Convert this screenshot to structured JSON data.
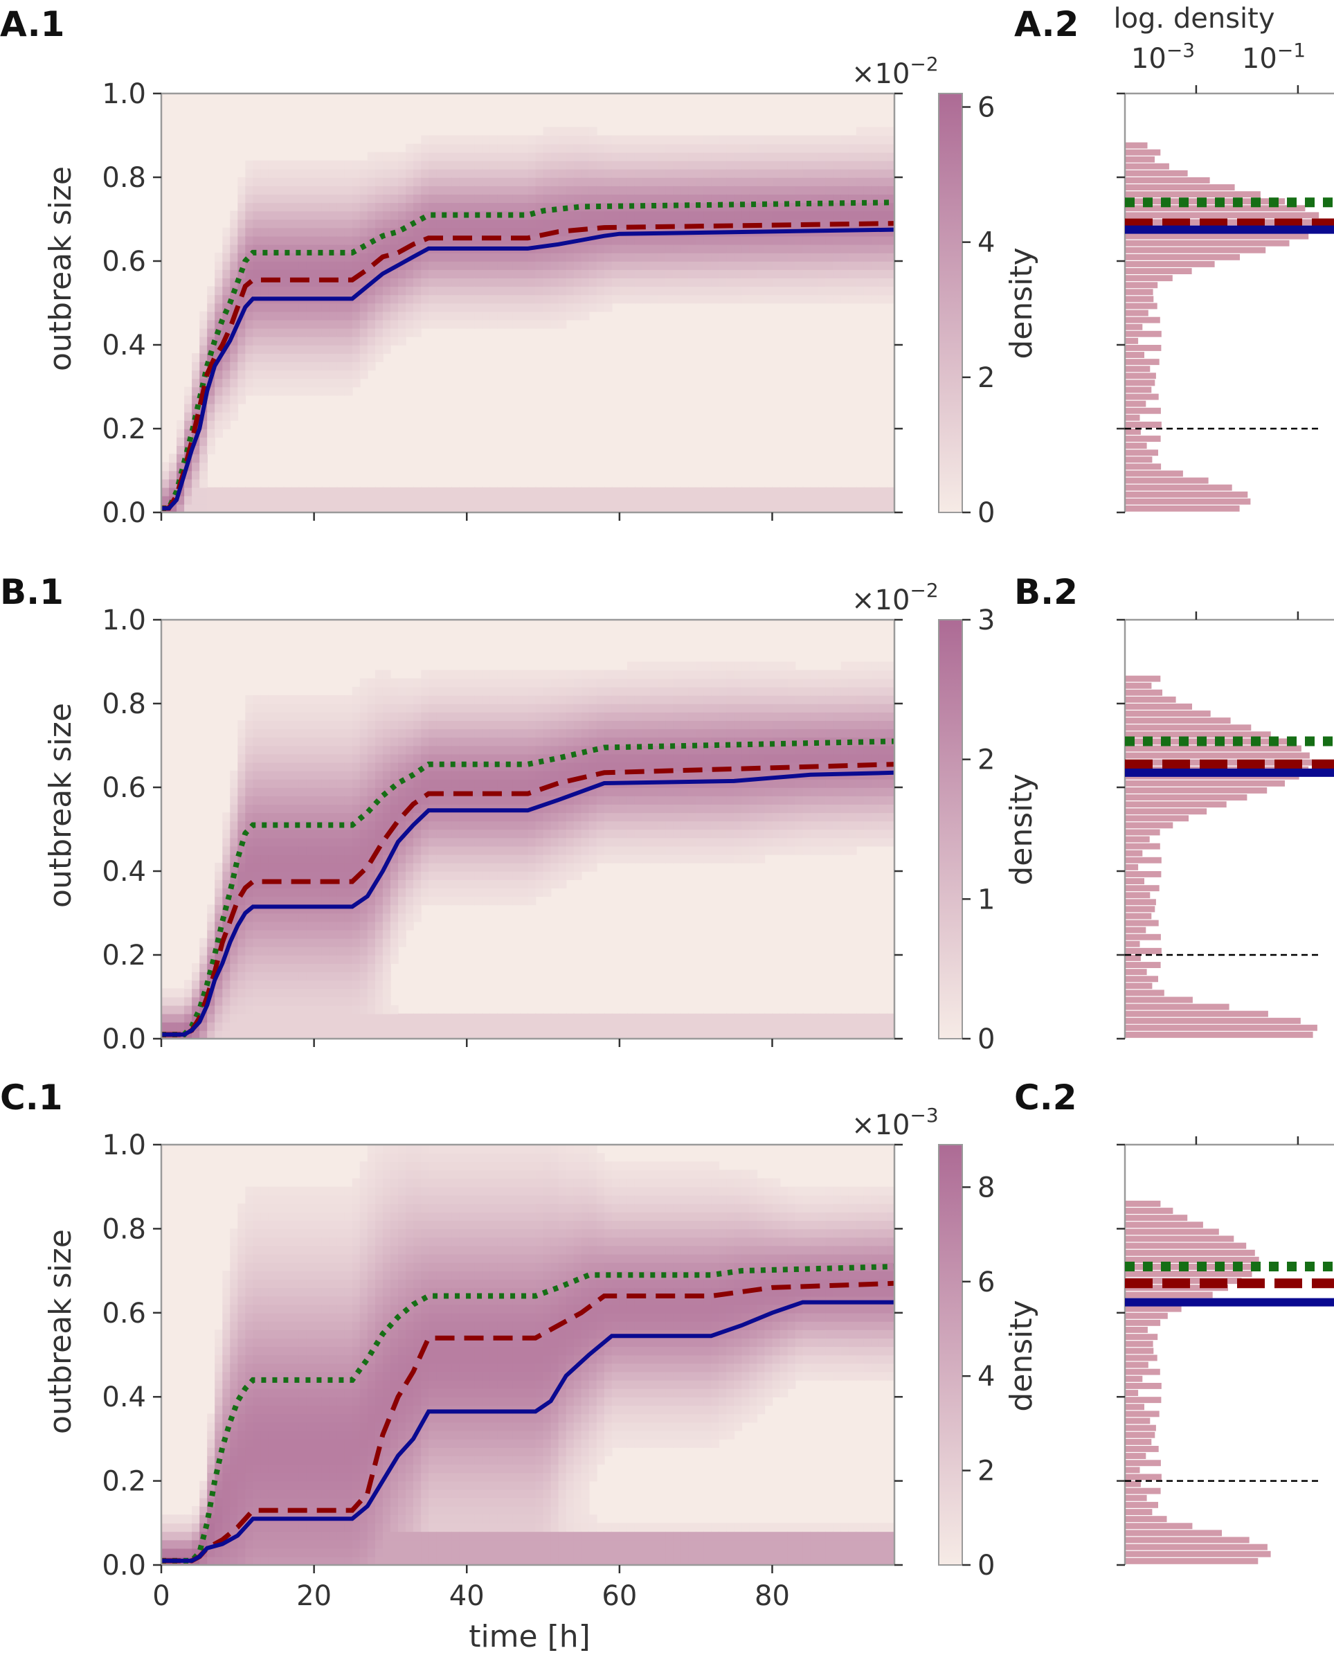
{
  "colors": {
    "heat_low": "#f6ebe6",
    "heat_high": "#ad6b95",
    "hist": "#d29aaa",
    "mean_dotted": "#156e15",
    "median_dashed": "#8b0000",
    "typical_solid": "#0a0a90",
    "spine": "#9a9a9a",
    "threshold_line": "#000000"
  },
  "shared": {
    "xlabel": "time [h]",
    "ylabel": "outbreak size",
    "cbar_label": "density",
    "density_axis_label": "log. density",
    "density_tick_labels": [
      {
        "base": "10",
        "exp": "−3"
      },
      {
        "base": "10",
        "exp": "−1"
      }
    ]
  },
  "chart_data": [
    {
      "type": "heatmap",
      "panel": "A",
      "label_main": "A.1",
      "label_side": "A.2",
      "xlim": [
        0,
        96
      ],
      "ylim": [
        0,
        1.0
      ],
      "x_ticks": [
        0,
        20,
        40,
        60,
        80
      ],
      "x_tick_labels": [
        "",
        "",
        "",
        "",
        ""
      ],
      "y_ticks": [
        0.0,
        0.2,
        0.4,
        0.6,
        0.8,
        1.0
      ],
      "y_tick_labels": [
        "0.0",
        "0.2",
        "0.4",
        "0.6",
        "0.8",
        "1.0"
      ],
      "colorbar": {
        "max": 6.2,
        "ticks": [
          0,
          2,
          4,
          6
        ],
        "tick_labels": [
          "0",
          "2",
          "4",
          "6"
        ],
        "multiplier_base": "×10",
        "multiplier_exp": "−2"
      },
      "show_density_ticklabels": true,
      "threshold": 0.2,
      "series": [
        {
          "name": "dotted",
          "style": "dotted",
          "points": [
            [
              0,
              0.01
            ],
            [
              1,
              0.01
            ],
            [
              2,
              0.05
            ],
            [
              3,
              0.12
            ],
            [
              4,
              0.19
            ],
            [
              5,
              0.27
            ],
            [
              6,
              0.35
            ],
            [
              7,
              0.41
            ],
            [
              8,
              0.46
            ],
            [
              9,
              0.5
            ],
            [
              10,
              0.55
            ],
            [
              11,
              0.6
            ],
            [
              12,
              0.62
            ],
            [
              25,
              0.62
            ],
            [
              27,
              0.64
            ],
            [
              29,
              0.66
            ],
            [
              31,
              0.67
            ],
            [
              33,
              0.69
            ],
            [
              35,
              0.71
            ],
            [
              48,
              0.71
            ],
            [
              50,
              0.72
            ],
            [
              55,
              0.73
            ],
            [
              96,
              0.74
            ]
          ]
        },
        {
          "name": "dashed",
          "style": "dashed",
          "points": [
            [
              0,
              0.01
            ],
            [
              1,
              0.01
            ],
            [
              2,
              0.04
            ],
            [
              3,
              0.1
            ],
            [
              4,
              0.17
            ],
            [
              5,
              0.25
            ],
            [
              6,
              0.33
            ],
            [
              7,
              0.37
            ],
            [
              8,
              0.4
            ],
            [
              9,
              0.44
            ],
            [
              10,
              0.49
            ],
            [
              11,
              0.54
            ],
            [
              12,
              0.555
            ],
            [
              25,
              0.555
            ],
            [
              27,
              0.58
            ],
            [
              29,
              0.61
            ],
            [
              31,
              0.62
            ],
            [
              33,
              0.64
            ],
            [
              35,
              0.655
            ],
            [
              48,
              0.655
            ],
            [
              52,
              0.67
            ],
            [
              58,
              0.68
            ],
            [
              96,
              0.69
            ]
          ]
        },
        {
          "name": "solid",
          "style": "solid",
          "points": [
            [
              0,
              0.01
            ],
            [
              1,
              0.01
            ],
            [
              2,
              0.03
            ],
            [
              3,
              0.09
            ],
            [
              4,
              0.15
            ],
            [
              5,
              0.2
            ],
            [
              6,
              0.29
            ],
            [
              7,
              0.35
            ],
            [
              8,
              0.38
            ],
            [
              9,
              0.41
            ],
            [
              10,
              0.45
            ],
            [
              11,
              0.49
            ],
            [
              12,
              0.51
            ],
            [
              25,
              0.51
            ],
            [
              27,
              0.54
            ],
            [
              29,
              0.57
            ],
            [
              31,
              0.59
            ],
            [
              33,
              0.61
            ],
            [
              35,
              0.63
            ],
            [
              48,
              0.63
            ],
            [
              52,
              0.64
            ],
            [
              55,
              0.65
            ],
            [
              58,
              0.66
            ],
            [
              60,
              0.665
            ],
            [
              96,
              0.675
            ]
          ]
        }
      ],
      "band": {
        "center": 0.68,
        "width": 0.1,
        "baseline": 0.02,
        "floor": 0.05
      },
      "hist_profile": {
        "low_peak": 0.03,
        "low_frac": 0.62,
        "high_peak": 0.69,
        "high_spread": 0.11,
        "high_frac": 0.98,
        "top": 0.89
      }
    },
    {
      "type": "heatmap",
      "panel": "B",
      "label_main": "B.1",
      "label_side": "B.2",
      "xlim": [
        0,
        96
      ],
      "ylim": [
        0,
        1.0
      ],
      "x_ticks": [
        0,
        20,
        40,
        60,
        80
      ],
      "x_tick_labels": [
        "",
        "",
        "",
        "",
        ""
      ],
      "y_ticks": [
        0.0,
        0.2,
        0.4,
        0.6,
        0.8,
        1.0
      ],
      "y_tick_labels": [
        "0.0",
        "0.2",
        "0.4",
        "0.6",
        "0.8",
        "1.0"
      ],
      "colorbar": {
        "max": 3.0,
        "ticks": [
          0,
          1,
          2,
          3
        ],
        "tick_labels": [
          "0",
          "1",
          "2",
          "3"
        ],
        "multiplier_base": "×10",
        "multiplier_exp": "−2"
      },
      "show_density_ticklabels": false,
      "threshold": 0.2,
      "series": [
        {
          "name": "dotted",
          "style": "dotted",
          "points": [
            [
              0,
              0.01
            ],
            [
              3,
              0.01
            ],
            [
              4,
              0.03
            ],
            [
              5,
              0.07
            ],
            [
              6,
              0.13
            ],
            [
              7,
              0.2
            ],
            [
              8,
              0.28
            ],
            [
              9,
              0.35
            ],
            [
              10,
              0.43
            ],
            [
              11,
              0.49
            ],
            [
              12,
              0.51
            ],
            [
              25,
              0.51
            ],
            [
              27,
              0.54
            ],
            [
              29,
              0.58
            ],
            [
              31,
              0.61
            ],
            [
              33,
              0.63
            ],
            [
              35,
              0.655
            ],
            [
              48,
              0.655
            ],
            [
              52,
              0.67
            ],
            [
              58,
              0.695
            ],
            [
              96,
              0.71
            ]
          ]
        },
        {
          "name": "dashed",
          "style": "dashed",
          "points": [
            [
              0,
              0.01
            ],
            [
              3,
              0.01
            ],
            [
              4,
              0.02
            ],
            [
              5,
              0.05
            ],
            [
              6,
              0.1
            ],
            [
              7,
              0.16
            ],
            [
              8,
              0.23
            ],
            [
              9,
              0.28
            ],
            [
              10,
              0.33
            ],
            [
              11,
              0.36
            ],
            [
              12,
              0.375
            ],
            [
              25,
              0.375
            ],
            [
              27,
              0.41
            ],
            [
              29,
              0.47
            ],
            [
              31,
              0.52
            ],
            [
              33,
              0.56
            ],
            [
              35,
              0.585
            ],
            [
              48,
              0.585
            ],
            [
              52,
              0.61
            ],
            [
              58,
              0.635
            ],
            [
              96,
              0.655
            ]
          ]
        },
        {
          "name": "solid",
          "style": "solid",
          "points": [
            [
              0,
              0.01
            ],
            [
              3,
              0.01
            ],
            [
              4,
              0.02
            ],
            [
              5,
              0.04
            ],
            [
              6,
              0.08
            ],
            [
              7,
              0.14
            ],
            [
              8,
              0.18
            ],
            [
              9,
              0.23
            ],
            [
              10,
              0.27
            ],
            [
              11,
              0.3
            ],
            [
              12,
              0.315
            ],
            [
              25,
              0.315
            ],
            [
              27,
              0.34
            ],
            [
              29,
              0.4
            ],
            [
              31,
              0.47
            ],
            [
              33,
              0.51
            ],
            [
              35,
              0.545
            ],
            [
              48,
              0.545
            ],
            [
              52,
              0.57
            ],
            [
              58,
              0.61
            ],
            [
              75,
              0.615
            ],
            [
              85,
              0.63
            ],
            [
              96,
              0.635
            ]
          ]
        }
      ],
      "band": {
        "center": 0.64,
        "width": 0.12,
        "baseline": 0.02,
        "floor": 0.08
      },
      "hist_profile": {
        "low_peak": 0.02,
        "low_frac": 0.95,
        "high_peak": 0.66,
        "high_spread": 0.13,
        "high_frac": 0.92,
        "top": 0.86
      }
    },
    {
      "type": "heatmap",
      "panel": "C",
      "label_main": "C.1",
      "label_side": "C.2",
      "xlim": [
        0,
        96
      ],
      "ylim": [
        0,
        1.0
      ],
      "x_ticks": [
        0,
        20,
        40,
        60,
        80
      ],
      "x_tick_labels": [
        "0",
        "20",
        "40",
        "60",
        "80"
      ],
      "y_ticks": [
        0.0,
        0.2,
        0.4,
        0.6,
        0.8,
        1.0
      ],
      "y_tick_labels": [
        "0.0",
        "0.2",
        "0.4",
        "0.6",
        "0.8",
        "1.0"
      ],
      "colorbar": {
        "max": 8.9,
        "ticks": [
          0,
          2,
          4,
          6,
          8
        ],
        "tick_labels": [
          "0",
          "2",
          "4",
          "6",
          "8"
        ],
        "multiplier_base": "×10",
        "multiplier_exp": "−3"
      },
      "show_density_ticklabels": false,
      "threshold": 0.2,
      "series": [
        {
          "name": "dotted",
          "style": "dotted",
          "points": [
            [
              0,
              0.01
            ],
            [
              4,
              0.01
            ],
            [
              5,
              0.03
            ],
            [
              6,
              0.1
            ],
            [
              7,
              0.2
            ],
            [
              8,
              0.28
            ],
            [
              9,
              0.34
            ],
            [
              10,
              0.39
            ],
            [
              11,
              0.42
            ],
            [
              12,
              0.44
            ],
            [
              25,
              0.44
            ],
            [
              27,
              0.49
            ],
            [
              29,
              0.55
            ],
            [
              31,
              0.59
            ],
            [
              33,
              0.62
            ],
            [
              35,
              0.64
            ],
            [
              49,
              0.64
            ],
            [
              52,
              0.66
            ],
            [
              56,
              0.69
            ],
            [
              72,
              0.69
            ],
            [
              76,
              0.7
            ],
            [
              96,
              0.71
            ]
          ]
        },
        {
          "name": "dashed",
          "style": "dashed",
          "points": [
            [
              0,
              0.01
            ],
            [
              4,
              0.01
            ],
            [
              5,
              0.02
            ],
            [
              6,
              0.04
            ],
            [
              8,
              0.06
            ],
            [
              10,
              0.09
            ],
            [
              12,
              0.13
            ],
            [
              25,
              0.13
            ],
            [
              27,
              0.17
            ],
            [
              29,
              0.31
            ],
            [
              31,
              0.4
            ],
            [
              33,
              0.46
            ],
            [
              35,
              0.54
            ],
            [
              49,
              0.54
            ],
            [
              52,
              0.57
            ],
            [
              55,
              0.6
            ],
            [
              58,
              0.64
            ],
            [
              72,
              0.64
            ],
            [
              76,
              0.65
            ],
            [
              80,
              0.66
            ],
            [
              96,
              0.67
            ]
          ]
        },
        {
          "name": "solid",
          "style": "solid",
          "points": [
            [
              0,
              0.01
            ],
            [
              4,
              0.01
            ],
            [
              5,
              0.02
            ],
            [
              6,
              0.04
            ],
            [
              8,
              0.05
            ],
            [
              10,
              0.07
            ],
            [
              12,
              0.11
            ],
            [
              25,
              0.11
            ],
            [
              27,
              0.14
            ],
            [
              29,
              0.2
            ],
            [
              31,
              0.26
            ],
            [
              33,
              0.3
            ],
            [
              35,
              0.365
            ],
            [
              49,
              0.365
            ],
            [
              51,
              0.39
            ],
            [
              53,
              0.45
            ],
            [
              56,
              0.5
            ],
            [
              59,
              0.545
            ],
            [
              72,
              0.545
            ],
            [
              76,
              0.57
            ],
            [
              80,
              0.6
            ],
            [
              84,
              0.625
            ],
            [
              96,
              0.625
            ]
          ]
        }
      ],
      "band": {
        "center": 0.64,
        "width": 0.12,
        "baseline": 0.04,
        "floor": 0.12
      },
      "hist_profile": {
        "low_peak": 0.03,
        "low_frac": 0.72,
        "high_peak": 0.72,
        "high_spread": 0.12,
        "high_frac": 0.66,
        "top": 0.87
      }
    }
  ]
}
